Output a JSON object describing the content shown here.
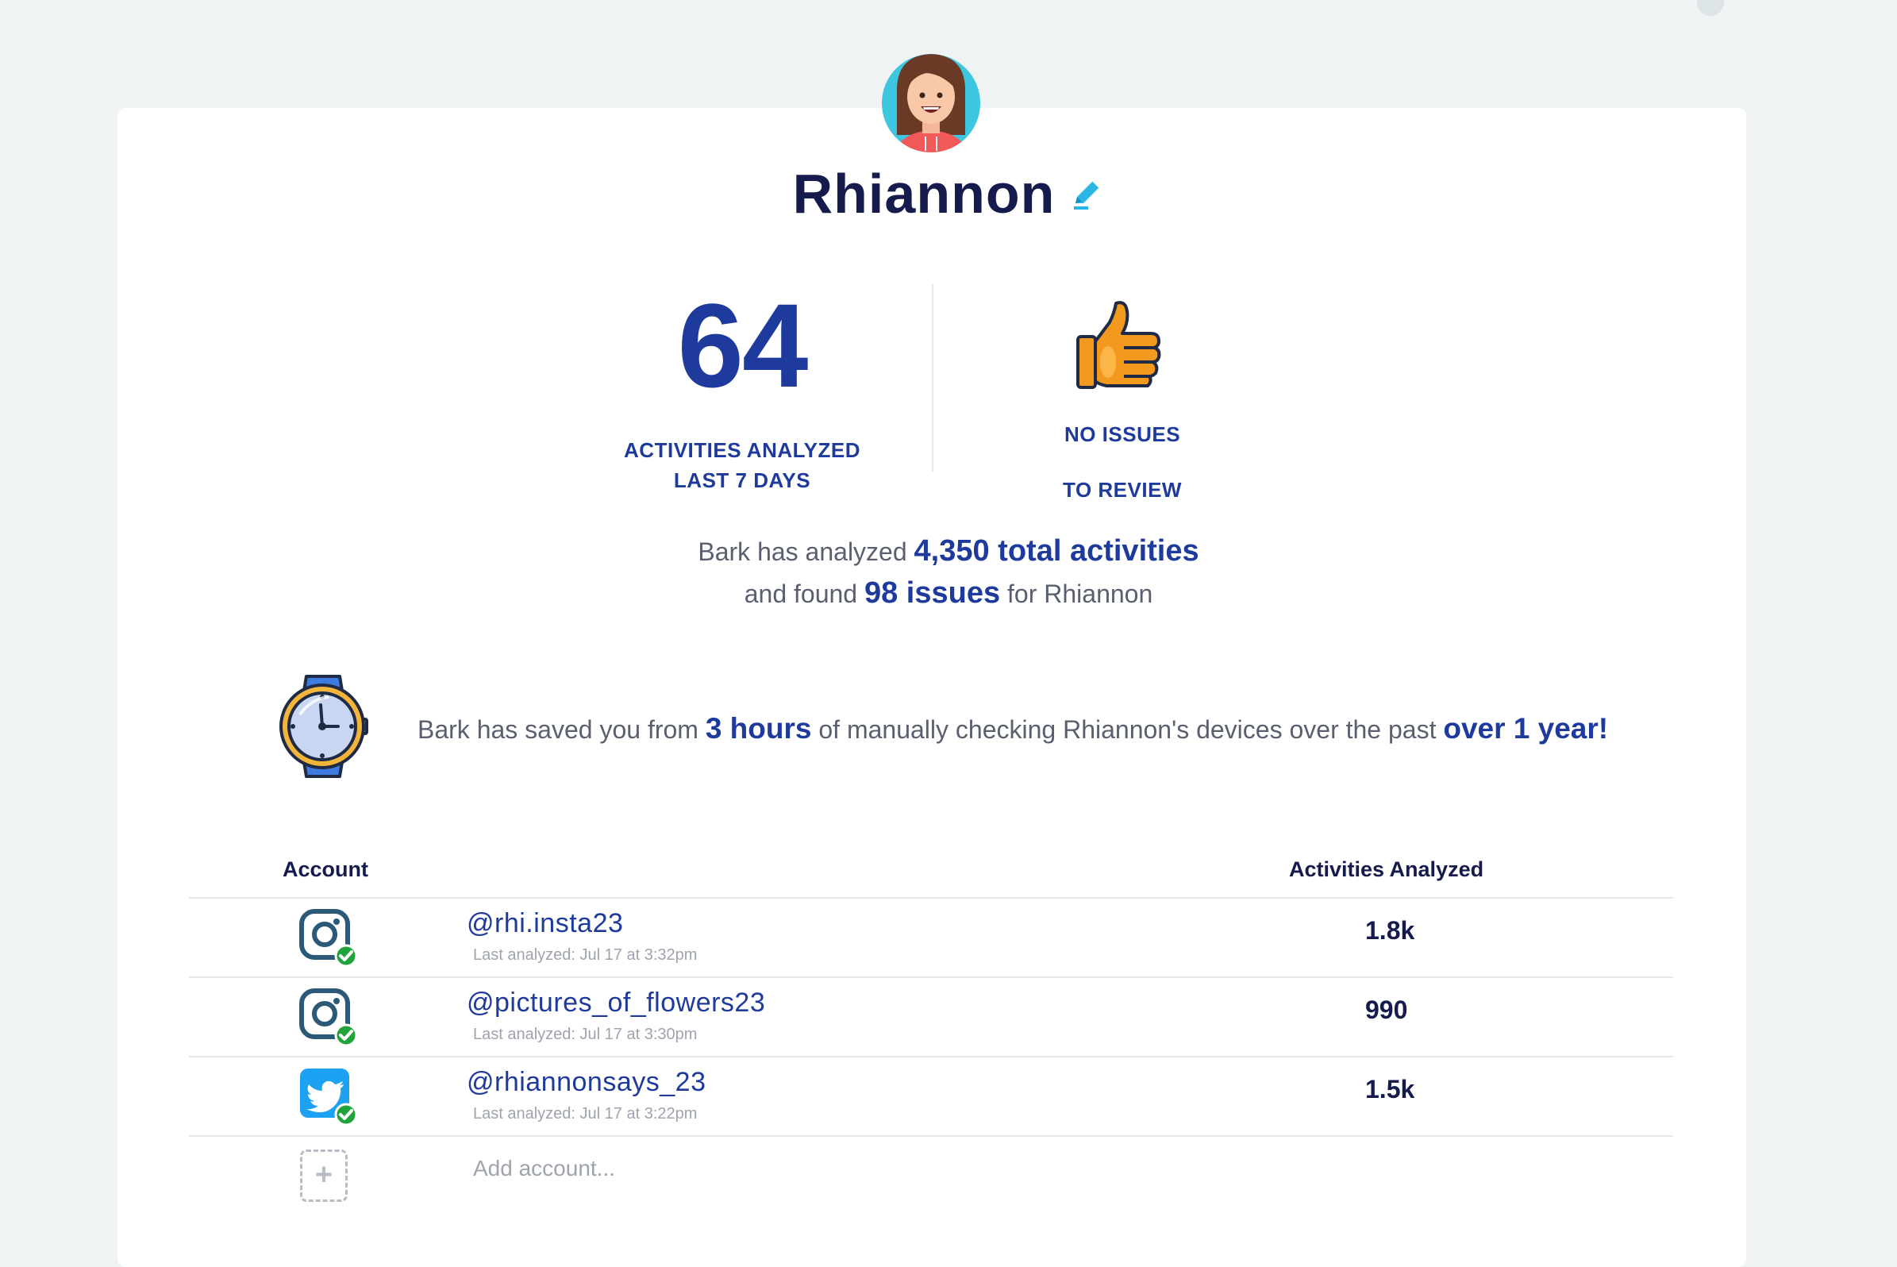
{
  "profile": {
    "name": "Rhiannon"
  },
  "stats": {
    "activities_number": "64",
    "activities_caption_line1": "ACTIVITIES ANALYZED",
    "activities_caption_line2": "LAST 7 DAYS",
    "issues_caption_line1": "NO ISSUES",
    "issues_caption_line2": "TO REVIEW"
  },
  "summary": {
    "part1": "Bark has analyzed ",
    "total_activities": "4,350 total activities",
    "part2": "and found ",
    "issues": "98 issues",
    "part3": " for Rhiannon"
  },
  "saved": {
    "part1": "Bark has saved you from ",
    "hours": "3 hours",
    "part2": " of manually checking Rhiannon's devices over the past ",
    "period": "over 1 year!"
  },
  "table": {
    "header_account": "Account",
    "header_activities": "Activities Analyzed",
    "rows": [
      {
        "platform": "instagram-icon",
        "handle": "@rhi.insta23",
        "last_analyzed": "Last analyzed: Jul 17 at 3:32pm",
        "count": "1.8k"
      },
      {
        "platform": "instagram-icon",
        "handle": "@pictures_of_flowers23",
        "last_analyzed": "Last analyzed: Jul 17 at 3:30pm",
        "count": "990"
      },
      {
        "platform": "twitter-icon",
        "handle": "@rhiannonsays_23",
        "last_analyzed": "Last analyzed: Jul 17 at 3:22pm",
        "count": "1.5k"
      }
    ],
    "add_account_label": "Add account..."
  },
  "colors": {
    "accent": "#1d3a9c",
    "title": "#151b4c",
    "check": "#1fa33a",
    "twitter": "#1da1f2",
    "instagram": "#2b5a78",
    "edit": "#29b6e6"
  }
}
